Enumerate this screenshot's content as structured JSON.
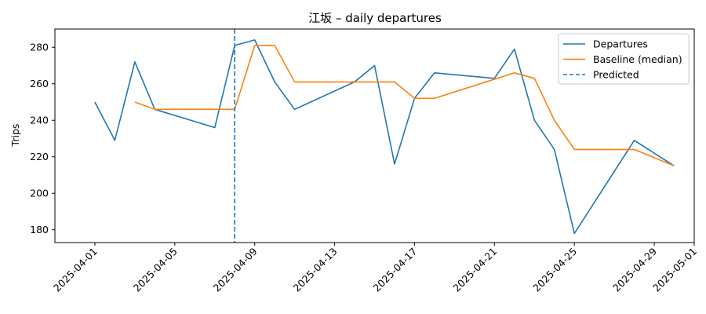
{
  "chart_data": {
    "type": "line",
    "title": "江坂 – daily departures",
    "xlabel": "",
    "ylabel": "Trips",
    "xlim": [
      "2025-03-30",
      "2025-05-01"
    ],
    "ylim": [
      173,
      290
    ],
    "x_ticks": [
      "2025-04-01",
      "2025-04-05",
      "2025-04-09",
      "2025-04-13",
      "2025-04-17",
      "2025-04-21",
      "2025-04-25",
      "2025-04-29",
      "2025-05-01"
    ],
    "y_ticks": [
      180,
      200,
      220,
      240,
      260,
      280
    ],
    "grid": false,
    "legend_position": "top-right",
    "series": [
      {
        "name": "Departures",
        "color": "#1f77b4",
        "style": "solid",
        "x": [
          "2025-04-01",
          "2025-04-02",
          "2025-04-03",
          "2025-04-04",
          "2025-04-07",
          "2025-04-08",
          "2025-04-09",
          "2025-04-10",
          "2025-04-11",
          "2025-04-14",
          "2025-04-15",
          "2025-04-16",
          "2025-04-17",
          "2025-04-18",
          "2025-04-21",
          "2025-04-22",
          "2025-04-23",
          "2025-04-24",
          "2025-04-25",
          "2025-04-28",
          "2025-04-30"
        ],
        "y": [
          250,
          229,
          272,
          246,
          236,
          281,
          284,
          261,
          246,
          261,
          270,
          216,
          252,
          266,
          263,
          279,
          240,
          224,
          178,
          229,
          215
        ]
      },
      {
        "name": "Baseline (median)",
        "color": "#ff7f0e",
        "style": "solid",
        "x": [
          "2025-04-03",
          "2025-04-04",
          "2025-04-08",
          "2025-04-09",
          "2025-04-10",
          "2025-04-11",
          "2025-04-16",
          "2025-04-17",
          "2025-04-18",
          "2025-04-22",
          "2025-04-23",
          "2025-04-24",
          "2025-04-25",
          "2025-04-28",
          "2025-04-30"
        ],
        "y": [
          250,
          246,
          246,
          281,
          281,
          261,
          261,
          252,
          252,
          266,
          263,
          240,
          224,
          224,
          215
        ]
      }
    ],
    "annotations": [
      {
        "type": "vline",
        "name": "Predicted",
        "x": "2025-04-08",
        "color": "#1f77b4",
        "style": "dashed"
      }
    ]
  }
}
